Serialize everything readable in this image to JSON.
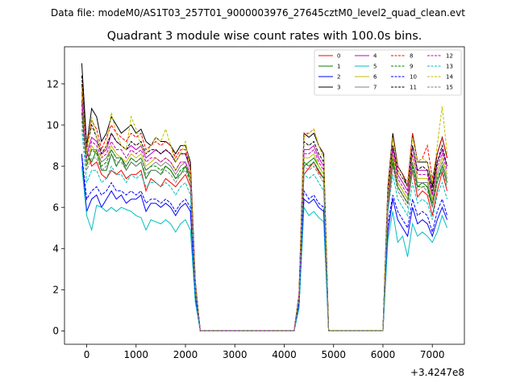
{
  "figure": {
    "suptitle": "Data file: modeM0/AS1T03_257T01_9000003976_27645cztM0_level2_quad_clean.evt"
  },
  "chart_data": {
    "type": "line",
    "title": "Quadrant 3 module wise count rates with 100.0s bins.",
    "xlabel": "",
    "ylabel": "",
    "x_offset_label": "+3.4247e8",
    "xlim": [
      -450,
      7650
    ],
    "ylim": [
      -0.65,
      13.8
    ],
    "xticks": [
      0,
      1000,
      2000,
      3000,
      4000,
      5000,
      6000,
      7000
    ],
    "xtick_labels": [
      "0",
      "1000",
      "2000",
      "3000",
      "4000",
      "5000",
      "6000",
      "7000"
    ],
    "yticks": [
      0,
      2,
      4,
      6,
      8,
      10,
      12
    ],
    "ytick_labels": [
      "0",
      "2",
      "4",
      "6",
      "8",
      "10",
      "12"
    ],
    "grid": false,
    "legend_position": "top-right",
    "legend_columns": 4,
    "x": [
      -100,
      0,
      100,
      200,
      300,
      400,
      500,
      600,
      700,
      800,
      900,
      1000,
      1100,
      1200,
      1300,
      1400,
      1500,
      1600,
      1700,
      1800,
      1900,
      2000,
      2100,
      2200,
      2300,
      4200,
      4300,
      4400,
      4500,
      4600,
      4700,
      4800,
      4900,
      6000,
      6100,
      6200,
      6300,
      6400,
      6500,
      6600,
      6700,
      6800,
      6900,
      7000,
      7100,
      7200,
      7300
    ],
    "series": [
      {
        "name": "0",
        "color": "#ff0000",
        "style": "solid",
        "values": [
          12.0,
          8.8,
          8.0,
          8.2,
          7.6,
          7.4,
          7.8,
          7.6,
          7.8,
          7.4,
          7.6,
          7.6,
          7.8,
          6.8,
          7.4,
          7.2,
          7.0,
          7.4,
          7.2,
          7.0,
          7.3,
          7.6,
          7.0,
          2.0,
          0.0,
          0.0,
          1.5,
          7.6,
          7.9,
          8.2,
          7.7,
          7.4,
          0.0,
          0.0,
          5.8,
          8.1,
          7.0,
          6.6,
          6.2,
          7.8,
          6.5,
          6.8,
          6.6,
          5.6,
          6.8,
          7.7,
          6.8
        ]
      },
      {
        "name": "1",
        "color": "#008000",
        "style": "solid",
        "values": [
          11.6,
          8.6,
          8.2,
          8.8,
          7.8,
          7.8,
          8.6,
          8.0,
          8.4,
          7.8,
          8.2,
          8.0,
          8.2,
          7.4,
          7.8,
          7.8,
          7.6,
          8.0,
          7.8,
          7.4,
          7.6,
          8.0,
          7.4,
          2.1,
          0.0,
          0.0,
          1.6,
          8.0,
          8.2,
          8.4,
          8.0,
          7.6,
          0.0,
          0.0,
          6.2,
          8.4,
          7.2,
          6.8,
          6.4,
          8.2,
          7.0,
          7.2,
          7.0,
          6.0,
          7.2,
          8.0,
          7.2
        ]
      },
      {
        "name": "2",
        "color": "#0000ff",
        "style": "solid",
        "values": [
          8.5,
          5.8,
          6.4,
          6.6,
          6.0,
          6.4,
          6.8,
          6.4,
          6.6,
          6.2,
          6.4,
          6.4,
          6.6,
          5.8,
          6.2,
          6.2,
          6.0,
          6.2,
          6.0,
          5.6,
          6.0,
          6.2,
          5.8,
          1.6,
          0.0,
          0.0,
          1.2,
          6.4,
          6.2,
          6.4,
          6.0,
          5.8,
          0.0,
          0.0,
          4.8,
          6.4,
          5.4,
          5.0,
          4.6,
          6.0,
          5.2,
          5.4,
          5.2,
          4.6,
          5.4,
          6.0,
          5.4
        ]
      },
      {
        "name": "3",
        "color": "#000000",
        "style": "solid",
        "values": [
          13.0,
          9.0,
          10.8,
          10.4,
          9.2,
          9.6,
          10.4,
          10.0,
          9.6,
          9.8,
          10.0,
          9.6,
          9.8,
          9.2,
          9.0,
          9.4,
          9.2,
          9.2,
          9.0,
          8.6,
          9.0,
          9.0,
          8.2,
          2.4,
          0.0,
          0.0,
          1.8,
          9.6,
          9.4,
          9.6,
          9.0,
          8.6,
          0.0,
          0.0,
          7.0,
          9.6,
          8.0,
          7.6,
          7.0,
          9.6,
          8.2,
          8.2,
          8.2,
          7.0,
          8.6,
          9.4,
          8.4
        ]
      },
      {
        "name": "4",
        "color": "#c000c0",
        "style": "solid",
        "values": [
          11.2,
          8.6,
          9.4,
          9.2,
          8.6,
          8.8,
          9.6,
          9.2,
          9.0,
          8.8,
          9.0,
          8.8,
          9.0,
          8.4,
          8.6,
          8.8,
          8.6,
          8.8,
          8.6,
          8.2,
          8.6,
          8.6,
          7.8,
          2.3,
          0.0,
          0.0,
          1.7,
          8.8,
          8.8,
          9.0,
          8.4,
          8.0,
          0.0,
          0.0,
          6.6,
          9.0,
          7.6,
          7.2,
          6.8,
          9.0,
          7.8,
          7.8,
          7.8,
          6.6,
          8.2,
          8.8,
          8.0
        ]
      },
      {
        "name": "5",
        "color": "#00bfbf",
        "style": "solid",
        "values": [
          8.0,
          5.6,
          4.9,
          6.1,
          6.0,
          5.8,
          6.0,
          5.8,
          6.0,
          5.9,
          5.8,
          5.6,
          5.5,
          4.9,
          5.4,
          5.3,
          5.2,
          5.4,
          5.2,
          4.8,
          5.2,
          5.4,
          4.9,
          1.4,
          0.0,
          0.0,
          1.1,
          6.0,
          5.6,
          5.8,
          5.5,
          5.3,
          0.0,
          0.0,
          4.4,
          5.8,
          4.3,
          4.6,
          3.6,
          5.2,
          4.6,
          4.8,
          4.6,
          4.3,
          4.8,
          5.6,
          5.0
        ]
      },
      {
        "name": "6",
        "color": "#bfbf00",
        "style": "solid",
        "values": [
          10.8,
          8.0,
          9.0,
          8.6,
          8.2,
          8.4,
          9.0,
          8.6,
          8.4,
          8.2,
          8.6,
          8.4,
          8.6,
          8.0,
          8.2,
          8.4,
          8.2,
          8.4,
          8.2,
          7.8,
          8.2,
          8.2,
          7.6,
          2.2,
          0.0,
          0.0,
          1.6,
          8.4,
          8.4,
          8.6,
          8.0,
          7.6,
          0.0,
          0.0,
          6.4,
          8.6,
          7.2,
          6.8,
          6.4,
          8.6,
          7.4,
          7.4,
          7.4,
          6.4,
          7.8,
          8.4,
          7.6
        ]
      },
      {
        "name": "7",
        "color": "#808080",
        "style": "solid",
        "values": [
          10.6,
          8.2,
          8.8,
          8.8,
          8.2,
          8.4,
          8.8,
          8.4,
          8.4,
          8.0,
          8.4,
          8.2,
          8.4,
          7.8,
          8.0,
          8.2,
          8.0,
          8.2,
          8.0,
          7.6,
          8.0,
          8.2,
          7.4,
          2.2,
          0.0,
          0.0,
          1.6,
          8.2,
          8.0,
          8.2,
          7.8,
          7.4,
          0.0,
          0.0,
          6.2,
          8.2,
          7.0,
          6.6,
          6.2,
          8.2,
          7.2,
          7.2,
          7.2,
          6.2,
          7.6,
          8.2,
          7.4
        ]
      },
      {
        "name": "8",
        "color": "#ff0000",
        "style": "dashed",
        "values": [
          11.6,
          9.0,
          10.2,
          9.8,
          8.8,
          9.4,
          10.0,
          9.6,
          9.4,
          9.2,
          9.6,
          9.4,
          9.6,
          8.8,
          9.0,
          9.2,
          9.0,
          9.2,
          9.0,
          8.4,
          8.8,
          8.8,
          8.0,
          2.3,
          0.0,
          0.0,
          1.8,
          9.6,
          9.6,
          9.8,
          9.0,
          8.4,
          0.0,
          0.0,
          7.0,
          9.4,
          8.0,
          7.6,
          7.2,
          9.6,
          8.2,
          8.4,
          9.0,
          7.4,
          8.6,
          9.4,
          8.4
        ]
      },
      {
        "name": "9",
        "color": "#008000",
        "style": "dashed",
        "values": [
          10.6,
          8.0,
          8.8,
          8.6,
          8.0,
          8.2,
          8.8,
          8.4,
          8.4,
          8.0,
          8.4,
          8.2,
          8.4,
          7.8,
          8.0,
          8.0,
          7.8,
          8.0,
          7.8,
          7.4,
          7.8,
          8.0,
          7.2,
          2.1,
          0.0,
          0.0,
          1.6,
          8.2,
          8.0,
          8.2,
          7.8,
          7.4,
          0.0,
          0.0,
          6.4,
          8.2,
          7.0,
          6.6,
          6.2,
          8.0,
          7.0,
          7.0,
          7.0,
          6.2,
          7.4,
          8.0,
          7.2
        ]
      },
      {
        "name": "10",
        "color": "#0000ff",
        "style": "dashed",
        "values": [
          8.6,
          6.4,
          6.8,
          7.0,
          6.6,
          6.8,
          7.2,
          6.8,
          6.8,
          6.6,
          6.8,
          6.6,
          6.8,
          6.2,
          6.4,
          6.4,
          6.2,
          6.4,
          6.2,
          5.8,
          6.2,
          6.4,
          6.0,
          1.7,
          0.0,
          0.0,
          1.3,
          6.8,
          6.4,
          6.6,
          6.2,
          6.0,
          0.0,
          0.0,
          5.2,
          6.6,
          5.8,
          5.4,
          5.0,
          6.4,
          5.6,
          5.8,
          5.6,
          4.8,
          5.8,
          6.4,
          5.6
        ]
      },
      {
        "name": "11",
        "color": "#000000",
        "style": "dashed",
        "values": [
          12.4,
          8.8,
          10.0,
          9.4,
          8.6,
          9.0,
          9.6,
          9.2,
          9.0,
          8.8,
          9.2,
          9.0,
          9.2,
          8.6,
          8.8,
          8.8,
          8.6,
          8.8,
          8.6,
          8.2,
          8.6,
          8.6,
          8.0,
          2.3,
          0.0,
          0.0,
          1.7,
          9.2,
          9.0,
          9.2,
          8.6,
          8.2,
          0.0,
          0.0,
          6.8,
          9.0,
          7.8,
          7.4,
          7.0,
          9.0,
          7.8,
          8.0,
          7.8,
          6.8,
          8.2,
          9.0,
          8.0
        ]
      },
      {
        "name": "12",
        "color": "#c000c0",
        "style": "dashed",
        "values": [
          11.0,
          8.4,
          9.2,
          9.0,
          8.4,
          8.6,
          9.2,
          8.8,
          8.8,
          8.4,
          8.8,
          8.6,
          8.8,
          8.2,
          8.4,
          8.4,
          8.2,
          8.4,
          8.2,
          7.8,
          8.2,
          8.2,
          7.6,
          2.2,
          0.0,
          0.0,
          1.7,
          8.6,
          8.6,
          8.8,
          8.2,
          7.8,
          0.0,
          0.0,
          6.6,
          8.8,
          7.4,
          7.0,
          6.6,
          8.6,
          7.6,
          7.6,
          7.6,
          6.6,
          8.0,
          8.6,
          7.8
        ]
      },
      {
        "name": "13",
        "color": "#00bfbf",
        "style": "dashed",
        "values": [
          9.8,
          7.2,
          7.8,
          7.8,
          7.2,
          7.4,
          8.0,
          7.6,
          7.6,
          7.2,
          7.6,
          7.4,
          7.6,
          7.0,
          7.2,
          7.2,
          7.0,
          7.2,
          7.0,
          6.6,
          7.0,
          7.2,
          6.6,
          1.9,
          0.0,
          0.0,
          1.5,
          7.6,
          7.4,
          7.6,
          7.2,
          6.8,
          0.0,
          0.0,
          5.8,
          7.6,
          6.4,
          6.0,
          5.6,
          7.2,
          6.2,
          6.4,
          6.2,
          5.4,
          6.6,
          7.2,
          6.4
        ]
      },
      {
        "name": "14",
        "color": "#bfbf00",
        "style": "dashed",
        "values": [
          11.8,
          8.6,
          10.4,
          9.4,
          8.4,
          9.0,
          10.6,
          9.6,
          9.0,
          8.8,
          10.4,
          9.8,
          9.0,
          8.6,
          9.0,
          9.4,
          9.2,
          9.8,
          9.0,
          8.2,
          8.6,
          9.2,
          7.8,
          2.3,
          0.0,
          0.0,
          1.8,
          9.4,
          9.6,
          9.8,
          9.0,
          8.4,
          0.0,
          0.0,
          6.8,
          9.4,
          7.8,
          7.4,
          7.0,
          9.4,
          8.2,
          8.4,
          8.2,
          7.2,
          9.0,
          10.9,
          8.6
        ]
      },
      {
        "name": "15",
        "color": "#808080",
        "style": "dashed",
        "values": [
          10.2,
          7.8,
          8.4,
          8.4,
          7.8,
          8.0,
          8.6,
          8.2,
          8.2,
          7.8,
          8.2,
          8.0,
          8.2,
          7.6,
          7.8,
          7.8,
          7.6,
          7.8,
          7.6,
          7.2,
          7.6,
          7.8,
          7.2,
          2.1,
          0.0,
          0.0,
          1.6,
          8.0,
          7.8,
          8.0,
          7.6,
          7.2,
          0.0,
          0.0,
          6.2,
          8.0,
          6.8,
          6.4,
          6.0,
          7.8,
          6.8,
          7.0,
          6.8,
          6.0,
          7.2,
          7.8,
          7.0
        ]
      }
    ]
  }
}
